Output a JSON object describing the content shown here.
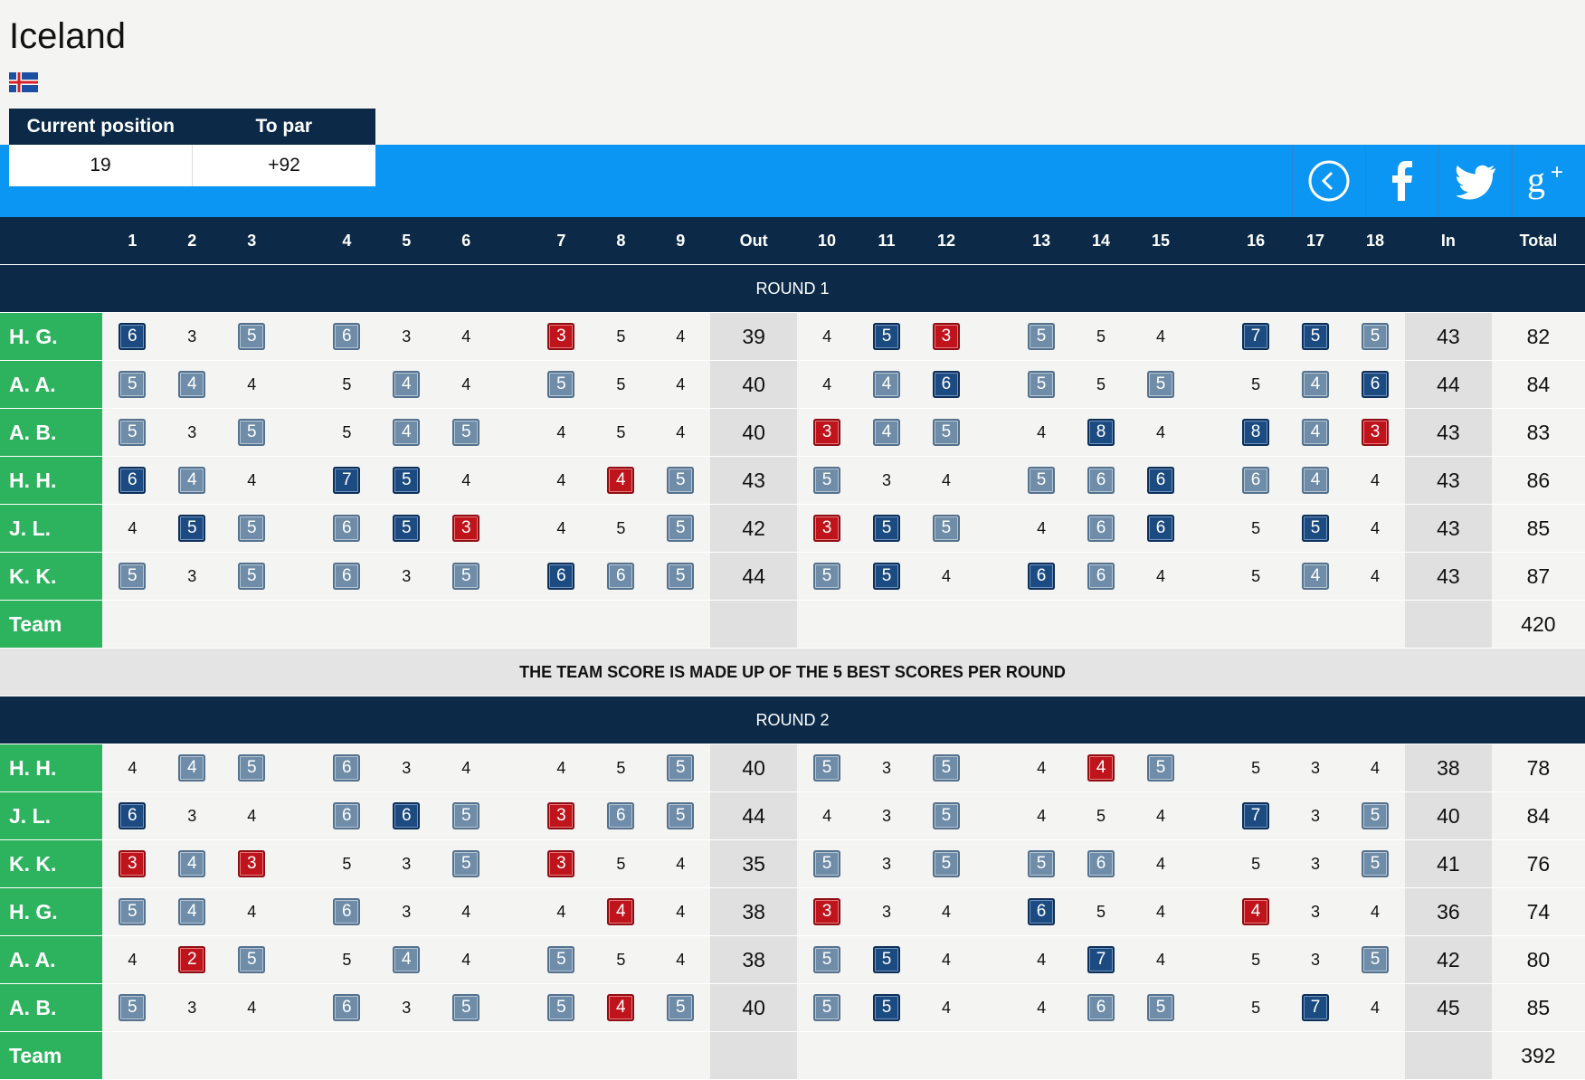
{
  "team": {
    "name": "Iceland",
    "flag_icon": "iceland-flag-icon"
  },
  "position": {
    "headers": [
      "Current position",
      "To par"
    ],
    "values": [
      "19",
      "+92"
    ]
  },
  "social": [
    {
      "name": "back-icon"
    },
    {
      "name": "facebook-icon"
    },
    {
      "name": "twitter-icon"
    },
    {
      "name": "googleplus-icon"
    }
  ],
  "columns": [
    "1",
    "2",
    "3",
    "4",
    "5",
    "6",
    "7",
    "8",
    "9",
    "Out",
    "10",
    "11",
    "12",
    "13",
    "14",
    "15",
    "16",
    "17",
    "18",
    "In",
    "Total"
  ],
  "rounds": [
    {
      "label": "ROUND 1",
      "players": [
        {
          "name": "H. G.",
          "scores": [
            6,
            3,
            5,
            6,
            3,
            4,
            3,
            5,
            4,
            4,
            5,
            3,
            5,
            5,
            4,
            7,
            5,
            5
          ],
          "style": [
            "d",
            "",
            "b",
            "b",
            "",
            "",
            "r",
            "",
            "",
            "",
            "d",
            "r",
            "b",
            "",
            "",
            "d",
            "d",
            "b"
          ],
          "out": "39",
          "in": "43",
          "total": "82"
        },
        {
          "name": "A. A.",
          "scores": [
            5,
            4,
            4,
            5,
            4,
            4,
            5,
            5,
            4,
            4,
            4,
            6,
            5,
            5,
            5,
            5,
            4,
            6
          ],
          "style": [
            "b",
            "b",
            "",
            "",
            "b",
            "",
            "b",
            "",
            "",
            "",
            "b",
            "d",
            "b",
            "",
            "b",
            "",
            "b",
            "d"
          ],
          "out": "40",
          "in": "44",
          "total": "84"
        },
        {
          "name": "A. B.",
          "scores": [
            5,
            3,
            5,
            5,
            4,
            5,
            4,
            5,
            4,
            3,
            4,
            5,
            4,
            8,
            4,
            8,
            4,
            3
          ],
          "style": [
            "b",
            "",
            "b",
            "",
            "b",
            "b",
            "",
            "",
            "",
            "r",
            "b",
            "b",
            "",
            "d",
            "",
            "d",
            "b",
            "r"
          ],
          "out": "40",
          "in": "43",
          "total": "83"
        },
        {
          "name": "H. H.",
          "scores": [
            6,
            4,
            4,
            7,
            5,
            4,
            4,
            4,
            5,
            5,
            3,
            4,
            5,
            6,
            6,
            6,
            4,
            4
          ],
          "style": [
            "d",
            "b",
            "",
            "d",
            "d",
            "",
            "",
            "r",
            "b",
            "b",
            "",
            "",
            "b",
            "b",
            "d",
            "b",
            "b",
            ""
          ],
          "out": "43",
          "in": "43",
          "total": "86"
        },
        {
          "name": "J. L.",
          "scores": [
            4,
            5,
            5,
            6,
            5,
            3,
            4,
            5,
            5,
            3,
            5,
            5,
            4,
            6,
            6,
            5,
            5,
            4
          ],
          "style": [
            "",
            "d",
            "b",
            "b",
            "d",
            "r",
            "",
            "",
            "b",
            "r",
            "d",
            "b",
            "",
            "b",
            "d",
            "",
            "d",
            ""
          ],
          "out": "42",
          "in": "43",
          "total": "85"
        },
        {
          "name": "K. K.",
          "scores": [
            5,
            3,
            5,
            6,
            3,
            5,
            6,
            6,
            5,
            5,
            5,
            4,
            6,
            6,
            4,
            5,
            4,
            4
          ],
          "style": [
            "b",
            "",
            "b",
            "b",
            "",
            "b",
            "d",
            "b",
            "b",
            "b",
            "d",
            "",
            "d",
            "b",
            "",
            "",
            "b",
            ""
          ],
          "out": "44",
          "in": "43",
          "total": "87"
        }
      ],
      "team_total": "420"
    },
    {
      "label": "ROUND 2",
      "players": [
        {
          "name": "H. H.",
          "scores": [
            4,
            4,
            5,
            6,
            3,
            4,
            4,
            5,
            5,
            5,
            3,
            5,
            4,
            4,
            5,
            5,
            3,
            4
          ],
          "style": [
            "",
            "b",
            "b",
            "b",
            "",
            "",
            "",
            "",
            "b",
            "b",
            "",
            "b",
            "",
            "r",
            "b",
            "",
            "",
            ""
          ],
          "out": "40",
          "in": "38",
          "total": "78"
        },
        {
          "name": "J. L.",
          "scores": [
            6,
            3,
            4,
            6,
            6,
            5,
            3,
            6,
            5,
            4,
            3,
            5,
            4,
            5,
            4,
            7,
            3,
            5
          ],
          "style": [
            "d",
            "",
            "",
            "b",
            "d",
            "b",
            "r",
            "b",
            "b",
            "",
            "",
            "b",
            "",
            "",
            "",
            "d",
            "",
            "b"
          ],
          "out": "44",
          "in": "40",
          "total": "84"
        },
        {
          "name": "K. K.",
          "scores": [
            3,
            4,
            3,
            5,
            3,
            5,
            3,
            5,
            4,
            5,
            3,
            5,
            5,
            6,
            4,
            5,
            3,
            5
          ],
          "style": [
            "r",
            "b",
            "r",
            "",
            "",
            "b",
            "r",
            "",
            "",
            "b",
            "",
            "b",
            "b",
            "b",
            "",
            "",
            "",
            "b"
          ],
          "out": "35",
          "in": "41",
          "total": "76"
        },
        {
          "name": "H. G.",
          "scores": [
            5,
            4,
            4,
            6,
            3,
            4,
            4,
            4,
            4,
            3,
            3,
            4,
            6,
            5,
            4,
            4,
            3,
            4
          ],
          "style": [
            "b",
            "b",
            "",
            "b",
            "",
            "",
            "",
            "r",
            "",
            "r",
            "",
            "",
            "d",
            "",
            "",
            "r",
            "",
            ""
          ],
          "out": "38",
          "in": "36",
          "total": "74"
        },
        {
          "name": "A. A.",
          "scores": [
            4,
            2,
            5,
            5,
            4,
            4,
            5,
            5,
            4,
            5,
            5,
            4,
            4,
            7,
            4,
            5,
            3,
            5
          ],
          "style": [
            "",
            "r",
            "b",
            "",
            "b",
            "",
            "b",
            "",
            "",
            "b",
            "d",
            "",
            "",
            "d",
            "",
            "",
            "",
            "b"
          ],
          "out": "38",
          "in": "42",
          "total": "80"
        },
        {
          "name": "A. B.",
          "scores": [
            5,
            3,
            4,
            6,
            3,
            5,
            5,
            4,
            5,
            5,
            5,
            4,
            4,
            6,
            5,
            5,
            7,
            4
          ],
          "style": [
            "b",
            "",
            "",
            "b",
            "",
            "b",
            "b",
            "r",
            "b",
            "b",
            "d",
            "",
            "",
            "b",
            "b",
            "",
            "d",
            ""
          ],
          "out": "40",
          "in": "45",
          "total": "85"
        }
      ],
      "team_total": "392"
    }
  ],
  "team_label": "Team",
  "note": "THE TEAM SCORE IS MADE UP OF THE 5 BEST SCORES PER ROUND",
  "colors": {
    "navy": "#0c2a47",
    "blue": "#0a96f2",
    "green": "#2db35e",
    "double_bogey": "#1c4b82",
    "bogey": "#6f8da8",
    "birdie": "#c0141c"
  }
}
